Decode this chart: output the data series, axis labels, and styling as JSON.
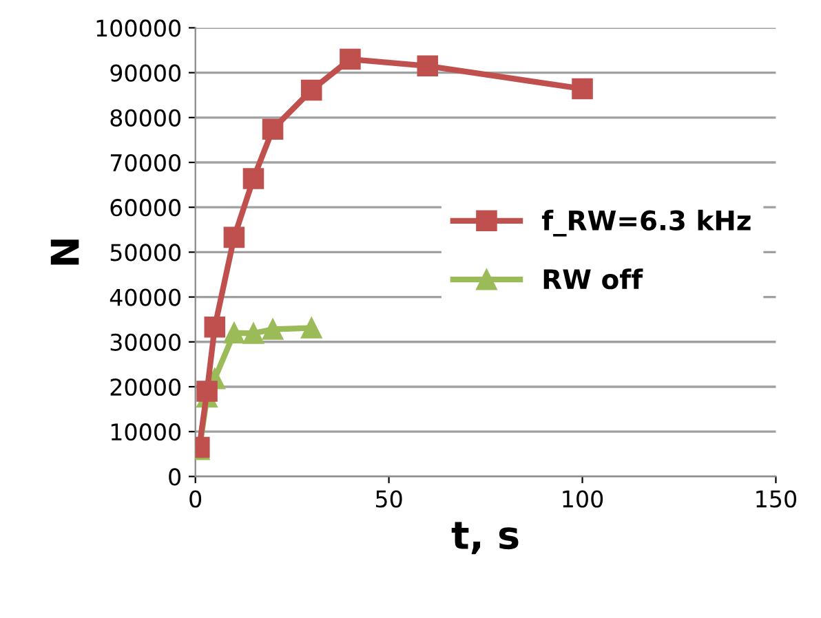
{
  "chart_data": {
    "type": "line",
    "xlabel": "t, s",
    "ylabel": "N",
    "series": [
      {
        "name": "f_RW=6.3 kHz",
        "color": "#c0504d",
        "marker": "square",
        "x": [
          1,
          3,
          5,
          10,
          15,
          20,
          30,
          40,
          60,
          100
        ],
        "values": [
          6500,
          19000,
          33300,
          53300,
          66400,
          77400,
          86100,
          93000,
          91500,
          86400
        ]
      },
      {
        "name": "RW off",
        "color": "#9bbb59",
        "marker": "triangle",
        "x": [
          1,
          3,
          5,
          10,
          15,
          20,
          30
        ],
        "values": [
          6000,
          17700,
          21800,
          32000,
          31900,
          32800,
          33100
        ]
      }
    ],
    "xlim": [
      0,
      150
    ],
    "xticks": [
      0,
      50,
      100,
      150
    ],
    "ylim": [
      0,
      100000
    ],
    "yticks": [
      0,
      10000,
      20000,
      30000,
      40000,
      50000,
      60000,
      70000,
      80000,
      90000,
      100000
    ],
    "grid": "y",
    "legend": "right"
  }
}
